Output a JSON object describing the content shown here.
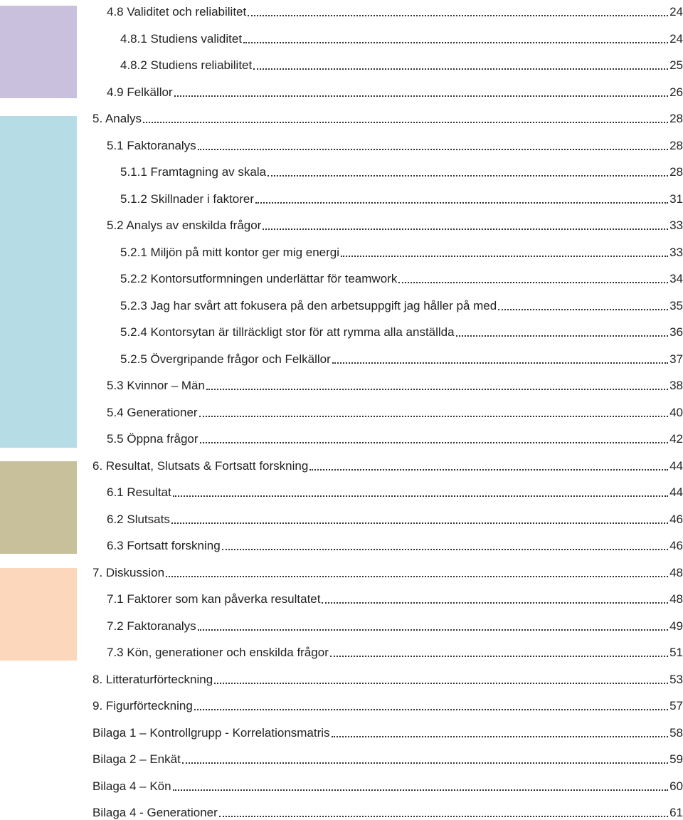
{
  "color_bands": [
    {
      "name": "purple-band",
      "color": "#c8c0dc"
    },
    {
      "name": "blue-band",
      "color": "#b6dce6"
    },
    {
      "name": "olive-band",
      "color": "#c7c09a"
    },
    {
      "name": "peach-band",
      "color": "#fdd7bc"
    }
  ],
  "toc": {
    "entries": [
      {
        "label": "4.8 Validitet och reliabilitet",
        "page": "24"
      },
      {
        "label": "4.8.1 Studiens validitet",
        "page": "24"
      },
      {
        "label": "4.8.2 Studiens reliabilitet",
        "page": "25"
      },
      {
        "label": "4.9 Felkällor",
        "page": "26"
      },
      {
        "label": "5. Analys",
        "page": "28"
      },
      {
        "label": "5.1 Faktoranalys",
        "page": "28"
      },
      {
        "label": "5.1.1 Framtagning av skala",
        "page": "28"
      },
      {
        "label": "5.1.2 Skillnader i faktorer",
        "page": "31"
      },
      {
        "label": "5.2 Analys av enskilda frågor",
        "page": "33"
      },
      {
        "label": "5.2.1 Miljön på mitt kontor ger mig energi",
        "page": "33"
      },
      {
        "label": "5.2.2 Kontorsutformningen underlättar för teamwork",
        "page": "34"
      },
      {
        "label": "5.2.3 Jag har svårt att fokusera på den arbetsuppgift jag håller på med",
        "page": "35"
      },
      {
        "label": "5.2.4 Kontorsytan är tillräckligt stor för att rymma alla anställda",
        "page": "36"
      },
      {
        "label": "5.2.5 Övergripande frågor och Felkällor",
        "page": "37"
      },
      {
        "label": "5.3 Kvinnor – Män",
        "page": "38"
      },
      {
        "label": "5.4 Generationer",
        "page": "40"
      },
      {
        "label": "5.5 Öppna frågor",
        "page": "42"
      },
      {
        "label": "6. Resultat, Slutsats & Fortsatt forskning",
        "page": "44"
      },
      {
        "label": "6.1 Resultat",
        "page": "44"
      },
      {
        "label": "6.2 Slutsats",
        "page": "46"
      },
      {
        "label": "6.3 Fortsatt forskning",
        "page": "46"
      },
      {
        "label": "7. Diskussion",
        "page": "48"
      },
      {
        "label": "7.1 Faktorer som kan påverka resultatet",
        "page": "48"
      },
      {
        "label": "7.2 Faktoranalys",
        "page": "49"
      },
      {
        "label": "7.3 Kön, generationer och enskilda frågor",
        "page": "51"
      },
      {
        "label": "8. Litteraturförteckning",
        "page": "53"
      },
      {
        "label": "9. Figurförteckning",
        "page": "57"
      },
      {
        "label": "Bilaga 1 – Kontrollgrupp - Korrelationsmatris",
        "page": "58"
      },
      {
        "label": "Bilaga 2 – Enkät",
        "page": "59"
      },
      {
        "label": "Bilaga 4 – Kön",
        "page": "60"
      },
      {
        "label": "Bilaga 4 - Generationer",
        "page": "61"
      }
    ]
  }
}
